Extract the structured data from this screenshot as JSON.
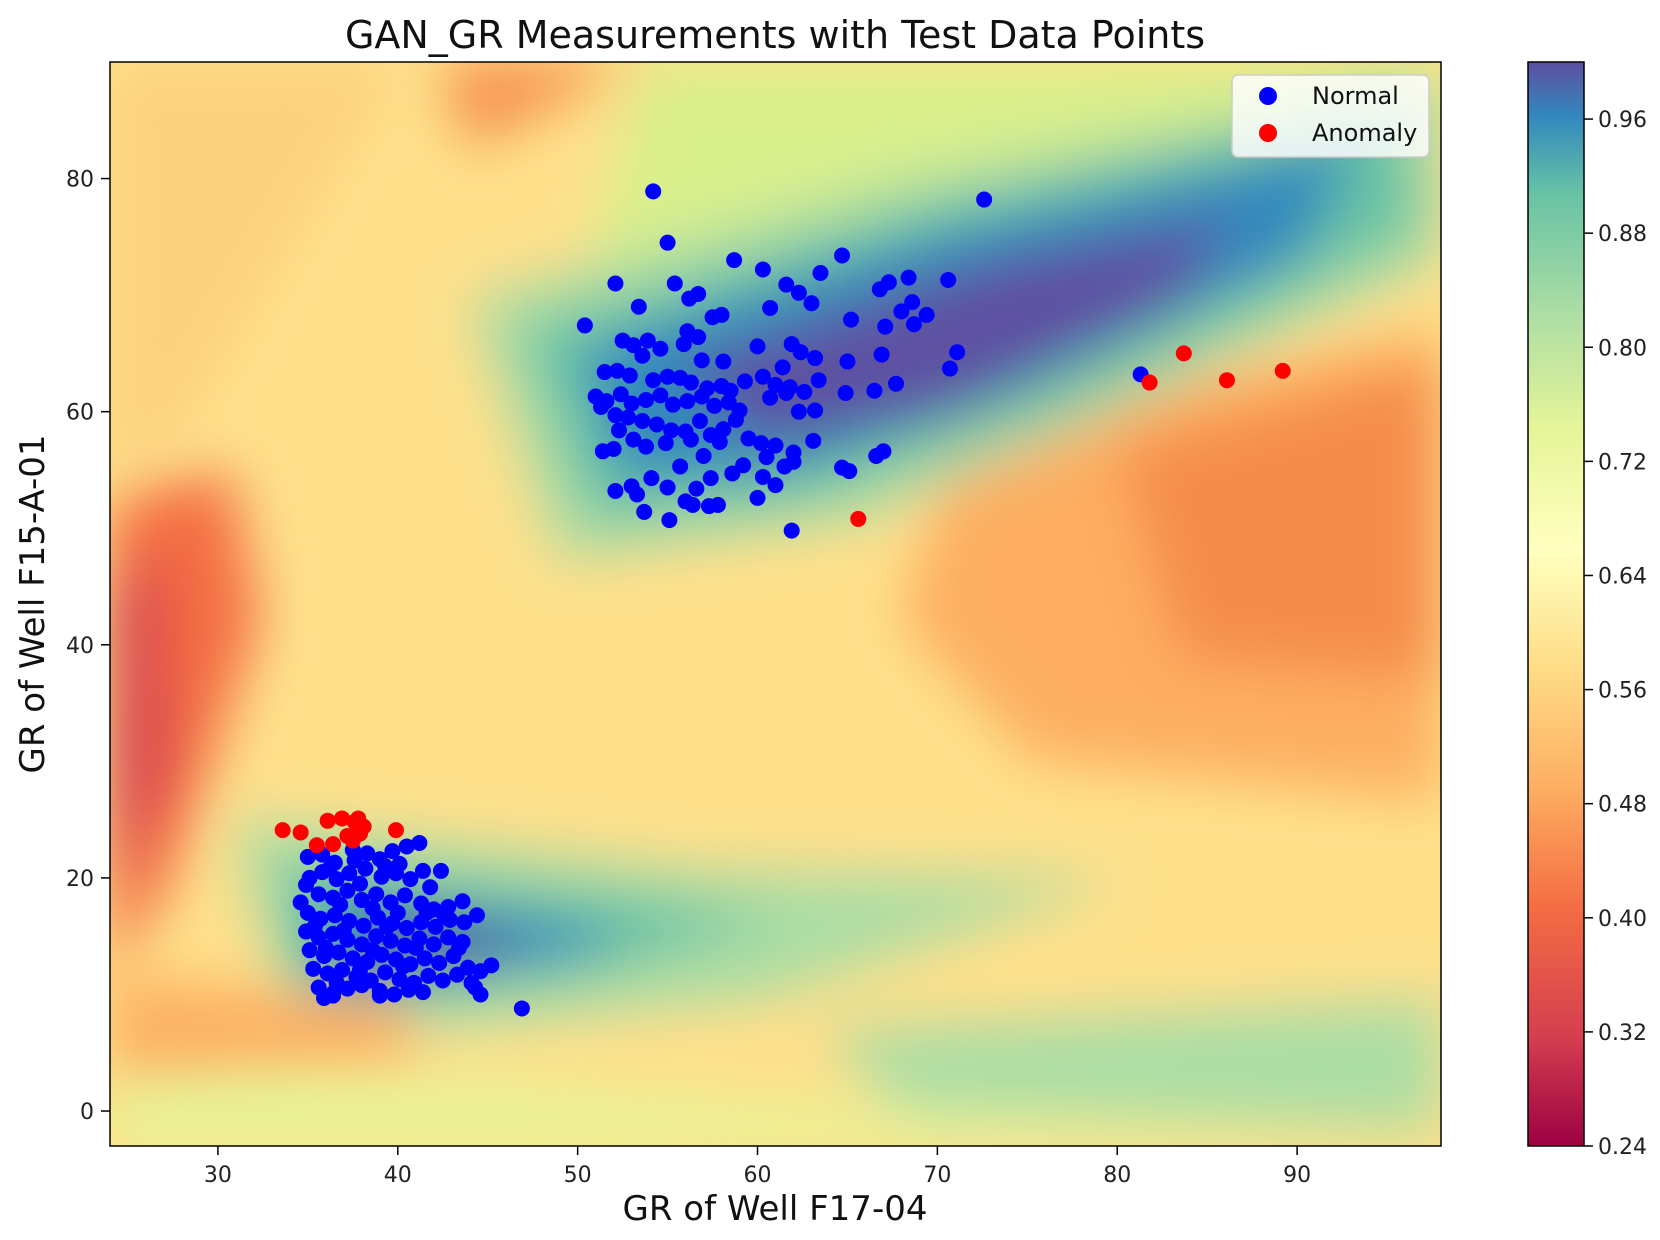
{
  "chart_data": {
    "type": "scatter",
    "title": "GAN_GR Measurements with Test Data Points",
    "xlabel": "GR of Well F17-04",
    "ylabel": "GR of Well F15-A-01",
    "xlim": [
      24,
      98
    ],
    "ylim": [
      -3,
      90
    ],
    "xticks": [
      30,
      40,
      50,
      60,
      70,
      80,
      90
    ],
    "yticks": [
      0,
      20,
      40,
      60,
      80
    ],
    "grid": false,
    "legend_position": "top-right",
    "background": {
      "type": "filled-contour",
      "colormap": "Spectral",
      "range": [
        0.24,
        1.0
      ],
      "colorbar_ticks": [
        0.24,
        0.32,
        0.4,
        0.48,
        0.56,
        0.64,
        0.72,
        0.8,
        0.88,
        0.96
      ]
    },
    "series": [
      {
        "name": "Normal",
        "color": "#0000ff",
        "points": [
          [
            54.2,
            78.9
          ],
          [
            72.6,
            78.2
          ],
          [
            55.0,
            74.5
          ],
          [
            58.7,
            73.0
          ],
          [
            64.7,
            73.4
          ],
          [
            60.3,
            72.2
          ],
          [
            63.5,
            71.9
          ],
          [
            52.1,
            71.0
          ],
          [
            55.4,
            71.0
          ],
          [
            61.6,
            70.9
          ],
          [
            62.3,
            70.2
          ],
          [
            66.8,
            70.5
          ],
          [
            67.3,
            71.1
          ],
          [
            68.4,
            71.5
          ],
          [
            70.6,
            71.3
          ],
          [
            56.2,
            69.7
          ],
          [
            56.7,
            70.1
          ],
          [
            53.4,
            69.0
          ],
          [
            60.7,
            68.9
          ],
          [
            63.0,
            69.3
          ],
          [
            57.5,
            68.1
          ],
          [
            58.0,
            68.3
          ],
          [
            65.2,
            67.9
          ],
          [
            68.0,
            68.6
          ],
          [
            68.6,
            69.4
          ],
          [
            69.4,
            68.3
          ],
          [
            50.4,
            67.4
          ],
          [
            56.1,
            66.9
          ],
          [
            56.7,
            66.4
          ],
          [
            67.1,
            67.3
          ],
          [
            68.7,
            67.5
          ],
          [
            52.5,
            66.1
          ],
          [
            53.1,
            65.7
          ],
          [
            53.9,
            66.1
          ],
          [
            55.9,
            65.8
          ],
          [
            60.0,
            65.6
          ],
          [
            61.9,
            65.8
          ],
          [
            62.4,
            65.1
          ],
          [
            63.2,
            64.6
          ],
          [
            66.9,
            64.9
          ],
          [
            71.1,
            65.1
          ],
          [
            53.6,
            64.8
          ],
          [
            54.6,
            65.4
          ],
          [
            56.9,
            64.4
          ],
          [
            58.1,
            64.3
          ],
          [
            61.4,
            63.8
          ],
          [
            65.0,
            64.3
          ],
          [
            70.7,
            63.7
          ],
          [
            51.5,
            63.4
          ],
          [
            52.2,
            63.5
          ],
          [
            52.9,
            63.1
          ],
          [
            54.2,
            62.7
          ],
          [
            55.0,
            63.0
          ],
          [
            55.7,
            62.9
          ],
          [
            56.3,
            62.5
          ],
          [
            57.2,
            62.0
          ],
          [
            58.0,
            62.2
          ],
          [
            58.5,
            61.8
          ],
          [
            59.3,
            62.6
          ],
          [
            60.3,
            63.0
          ],
          [
            61.0,
            62.3
          ],
          [
            61.8,
            62.1
          ],
          [
            62.6,
            61.7
          ],
          [
            63.4,
            62.7
          ],
          [
            64.9,
            61.6
          ],
          [
            66.5,
            61.8
          ],
          [
            67.7,
            62.4
          ],
          [
            51.0,
            61.3
          ],
          [
            51.6,
            60.9
          ],
          [
            52.4,
            61.5
          ],
          [
            53.0,
            60.7
          ],
          [
            53.8,
            61.0
          ],
          [
            54.6,
            61.4
          ],
          [
            55.3,
            60.6
          ],
          [
            56.1,
            60.9
          ],
          [
            56.9,
            61.3
          ],
          [
            57.6,
            60.5
          ],
          [
            58.4,
            60.8
          ],
          [
            59.0,
            60.1
          ],
          [
            60.7,
            61.2
          ],
          [
            61.6,
            61.6
          ],
          [
            62.3,
            60.0
          ],
          [
            63.2,
            60.1
          ],
          [
            51.3,
            60.4
          ],
          [
            52.1,
            59.7
          ],
          [
            52.8,
            59.5
          ],
          [
            53.6,
            59.2
          ],
          [
            54.4,
            58.9
          ],
          [
            55.2,
            58.4
          ],
          [
            56.0,
            58.3
          ],
          [
            56.8,
            59.2
          ],
          [
            57.4,
            58.0
          ],
          [
            58.1,
            58.5
          ],
          [
            58.8,
            59.3
          ],
          [
            59.5,
            57.7
          ],
          [
            60.2,
            57.3
          ],
          [
            61.0,
            57.1
          ],
          [
            62.0,
            56.5
          ],
          [
            63.1,
            57.5
          ],
          [
            52.3,
            58.4
          ],
          [
            53.1,
            57.6
          ],
          [
            53.8,
            57.0
          ],
          [
            54.9,
            57.3
          ],
          [
            56.3,
            57.6
          ],
          [
            57.0,
            56.2
          ],
          [
            57.9,
            57.4
          ],
          [
            59.2,
            55.4
          ],
          [
            60.5,
            56.1
          ],
          [
            61.5,
            55.3
          ],
          [
            62.0,
            55.7
          ],
          [
            64.7,
            55.2
          ],
          [
            65.1,
            54.9
          ],
          [
            66.6,
            56.2
          ],
          [
            67.0,
            56.6
          ],
          [
            51.4,
            56.6
          ],
          [
            52.0,
            56.8
          ],
          [
            54.1,
            54.3
          ],
          [
            55.0,
            53.5
          ],
          [
            55.7,
            55.3
          ],
          [
            56.6,
            53.4
          ],
          [
            57.4,
            54.3
          ],
          [
            58.6,
            54.7
          ],
          [
            60.3,
            54.4
          ],
          [
            61.0,
            53.7
          ],
          [
            52.1,
            53.2
          ],
          [
            53.0,
            53.6
          ],
          [
            53.3,
            52.9
          ],
          [
            56.0,
            52.3
          ],
          [
            56.4,
            52.0
          ],
          [
            57.3,
            51.9
          ],
          [
            57.8,
            52.0
          ],
          [
            60.0,
            52.6
          ],
          [
            53.7,
            51.4
          ],
          [
            55.1,
            50.7
          ],
          [
            61.9,
            49.8
          ],
          [
            81.3,
            63.2
          ],
          [
            35.0,
            21.8
          ],
          [
            35.8,
            22.0
          ],
          [
            36.5,
            21.3
          ],
          [
            37.6,
            21.5
          ],
          [
            38.3,
            22.1
          ],
          [
            39.0,
            21.6
          ],
          [
            39.7,
            22.3
          ],
          [
            40.5,
            22.7
          ],
          [
            41.2,
            23.0
          ],
          [
            35.1,
            20.0
          ],
          [
            35.8,
            20.5
          ],
          [
            36.6,
            19.9
          ],
          [
            37.3,
            20.4
          ],
          [
            38.2,
            20.8
          ],
          [
            39.1,
            20.1
          ],
          [
            39.9,
            20.4
          ],
          [
            40.7,
            19.9
          ],
          [
            41.4,
            20.6
          ],
          [
            34.9,
            19.4
          ],
          [
            35.6,
            18.6
          ],
          [
            36.4,
            18.3
          ],
          [
            37.2,
            18.9
          ],
          [
            38.0,
            18.1
          ],
          [
            38.8,
            18.6
          ],
          [
            39.6,
            17.9
          ],
          [
            40.4,
            18.5
          ],
          [
            41.3,
            17.8
          ],
          [
            42.0,
            17.3
          ],
          [
            42.8,
            17.5
          ],
          [
            43.6,
            18.0
          ],
          [
            35.0,
            17.0
          ],
          [
            35.7,
            16.5
          ],
          [
            36.5,
            16.8
          ],
          [
            37.3,
            16.3
          ],
          [
            38.1,
            15.9
          ],
          [
            38.9,
            16.6
          ],
          [
            39.7,
            16.1
          ],
          [
            40.5,
            15.7
          ],
          [
            41.3,
            16.2
          ],
          [
            42.1,
            15.8
          ],
          [
            42.9,
            16.4
          ],
          [
            43.7,
            16.2
          ],
          [
            44.4,
            16.8
          ],
          [
            34.9,
            15.4
          ],
          [
            35.6,
            14.9
          ],
          [
            36.4,
            15.2
          ],
          [
            37.2,
            14.7
          ],
          [
            38.0,
            14.3
          ],
          [
            38.8,
            15.0
          ],
          [
            39.6,
            14.6
          ],
          [
            40.4,
            14.2
          ],
          [
            41.2,
            14.8
          ],
          [
            42.0,
            14.3
          ],
          [
            42.8,
            14.9
          ],
          [
            43.6,
            14.5
          ],
          [
            35.1,
            13.8
          ],
          [
            35.9,
            13.3
          ],
          [
            36.7,
            13.6
          ],
          [
            37.5,
            13.1
          ],
          [
            38.3,
            12.8
          ],
          [
            39.1,
            13.4
          ],
          [
            39.9,
            13.0
          ],
          [
            40.7,
            12.6
          ],
          [
            41.5,
            13.1
          ],
          [
            42.3,
            12.7
          ],
          [
            43.1,
            13.3
          ],
          [
            43.9,
            12.3
          ],
          [
            44.6,
            12.0
          ],
          [
            45.2,
            12.5
          ],
          [
            35.3,
            12.2
          ],
          [
            36.1,
            11.8
          ],
          [
            36.9,
            12.1
          ],
          [
            37.7,
            11.5
          ],
          [
            38.5,
            11.2
          ],
          [
            39.3,
            11.9
          ],
          [
            40.1,
            11.3
          ],
          [
            40.9,
            11.0
          ],
          [
            41.7,
            11.6
          ],
          [
            42.5,
            11.2
          ],
          [
            43.3,
            11.7
          ],
          [
            44.1,
            11.0
          ],
          [
            35.6,
            10.6
          ],
          [
            36.4,
            10.1
          ],
          [
            37.2,
            10.5
          ],
          [
            38.0,
            10.8
          ],
          [
            39.0,
            10.3
          ],
          [
            39.8,
            10.0
          ],
          [
            40.6,
            10.4
          ],
          [
            41.4,
            10.2
          ],
          [
            44.3,
            10.6
          ],
          [
            44.6,
            10.0
          ],
          [
            35.9,
            9.7
          ],
          [
            36.4,
            9.9
          ],
          [
            39.0,
            9.9
          ],
          [
            46.9,
            8.8
          ],
          [
            36.0,
            14.0
          ],
          [
            37.0,
            15.5
          ],
          [
            38.6,
            17.4
          ],
          [
            40.0,
            17.0
          ],
          [
            41.8,
            19.2
          ],
          [
            34.6,
            17.9
          ],
          [
            36.2,
            20.8
          ],
          [
            37.9,
            19.5
          ],
          [
            39.3,
            21.0
          ],
          [
            42.4,
            20.6
          ],
          [
            36.8,
            17.7
          ],
          [
            39.4,
            15.8
          ],
          [
            41.0,
            14.0
          ],
          [
            42.6,
            16.7
          ],
          [
            37.9,
            12.1
          ],
          [
            40.3,
            12.4
          ],
          [
            36.6,
            11.0
          ],
          [
            38.6,
            13.8
          ],
          [
            43.4,
            14.0
          ],
          [
            35.4,
            15.9
          ],
          [
            37.5,
            22.4
          ],
          [
            40.1,
            21.2
          ],
          [
            41.6,
            17.0
          ]
        ]
      },
      {
        "name": "Anomaly",
        "color": "#ff0000",
        "points": [
          [
            65.6,
            50.8
          ],
          [
            81.8,
            62.5
          ],
          [
            83.7,
            65.0
          ],
          [
            86.1,
            62.7
          ],
          [
            89.2,
            63.5
          ],
          [
            33.6,
            24.1
          ],
          [
            34.6,
            23.9
          ],
          [
            35.5,
            22.8
          ],
          [
            36.1,
            24.9
          ],
          [
            36.4,
            22.9
          ],
          [
            36.9,
            25.1
          ],
          [
            37.2,
            23.6
          ],
          [
            37.6,
            24.8
          ],
          [
            37.9,
            23.8
          ],
          [
            37.8,
            25.1
          ],
          [
            38.1,
            24.4
          ],
          [
            37.5,
            23.2
          ],
          [
            39.9,
            24.1
          ]
        ]
      }
    ]
  }
}
